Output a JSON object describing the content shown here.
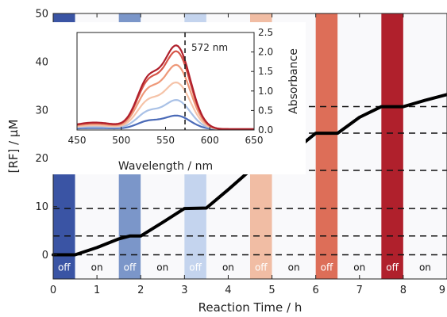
{
  "chart_data": [
    {
      "type": "line",
      "xlabel": "Reaction Time / h",
      "ylabel": "[RF] / μM",
      "xlim": [
        0,
        9
      ],
      "ylim": [
        -5,
        50
      ],
      "xticks": [
        "0",
        "1",
        "2",
        "3",
        "4",
        "5",
        "6",
        "7",
        "8",
        "9"
      ],
      "yticks": [
        "0",
        "10",
        "20",
        "30",
        "40",
        "50"
      ],
      "series": [
        {
          "x": [
            0,
            0.5,
            1.0,
            1.5,
            1.75,
            2.0,
            2.5,
            3.0,
            3.5,
            4.0,
            4.5,
            4.75,
            5.0,
            5.5,
            6.0,
            6.5,
            7.0,
            7.5,
            7.75,
            8.0,
            8.5,
            9.0
          ],
          "y": [
            0,
            0,
            1.5,
            3.3,
            3.9,
            3.9,
            6.7,
            9.6,
            9.7,
            13.5,
            17.5,
            17.5,
            17.5,
            21.5,
            25.2,
            25.2,
            28.5,
            30.7,
            30.7,
            30.7,
            32.0,
            33.2
          ]
        }
      ],
      "dashed_levels": [
        0,
        3.9,
        9.6,
        17.5,
        25.2,
        30.7
      ],
      "periods": [
        {
          "label": "off",
          "start": 0.0,
          "end": 0.5,
          "state": "off",
          "color": "#3a54a4"
        },
        {
          "label": "on",
          "start": 0.5,
          "end": 1.5,
          "state": "on",
          "color": "#f4f4f8"
        },
        {
          "label": "off",
          "start": 1.5,
          "end": 2.0,
          "state": "off",
          "color": "#7b96c9"
        },
        {
          "label": "on",
          "start": 2.0,
          "end": 3.0,
          "state": "on",
          "color": "#f4f4f8"
        },
        {
          "label": "off",
          "start": 3.0,
          "end": 3.5,
          "state": "off",
          "color": "#c4d4ee"
        },
        {
          "label": "on",
          "start": 3.5,
          "end": 4.5,
          "state": "on",
          "color": "#f4f4f8"
        },
        {
          "label": "off",
          "start": 4.5,
          "end": 5.0,
          "state": "off",
          "color": "#f1bda4"
        },
        {
          "label": "on",
          "start": 5.0,
          "end": 6.0,
          "state": "on",
          "color": "#f4f4f8"
        },
        {
          "label": "off",
          "start": 6.0,
          "end": 6.5,
          "state": "off",
          "color": "#dd6e58"
        },
        {
          "label": "on",
          "start": 6.5,
          "end": 7.5,
          "state": "on",
          "color": "#f4f4f8"
        },
        {
          "label": "off",
          "start": 7.5,
          "end": 8.0,
          "state": "off",
          "color": "#b0202c"
        },
        {
          "label": "on",
          "start": 8.0,
          "end": 9.0,
          "state": "on",
          "color": "#f4f4f8"
        }
      ]
    },
    {
      "type": "line",
      "xlabel": "Wavelength / nm",
      "ylabel": "Absorbance",
      "xlim": [
        450,
        650
      ],
      "ylim": [
        0,
        2.5
      ],
      "xticks": [
        "450",
        "500",
        "550",
        "600",
        "650"
      ],
      "yticks": [
        "0.0",
        "0.5",
        "1.0",
        "1.5",
        "2.0",
        "2.5"
      ],
      "marker": {
        "x": 572,
        "label": "572 nm"
      },
      "series": [
        {
          "peak": 0.35,
          "color": "#4a6ab7"
        },
        {
          "peak": 0.75,
          "color": "#a9c1e6"
        },
        {
          "peak": 1.2,
          "color": "#f5c3a8"
        },
        {
          "peak": 1.65,
          "color": "#ee9878"
        },
        {
          "peak": 2.0,
          "color": "#d65548"
        },
        {
          "peak": 2.15,
          "color": "#b0202c"
        }
      ]
    }
  ]
}
